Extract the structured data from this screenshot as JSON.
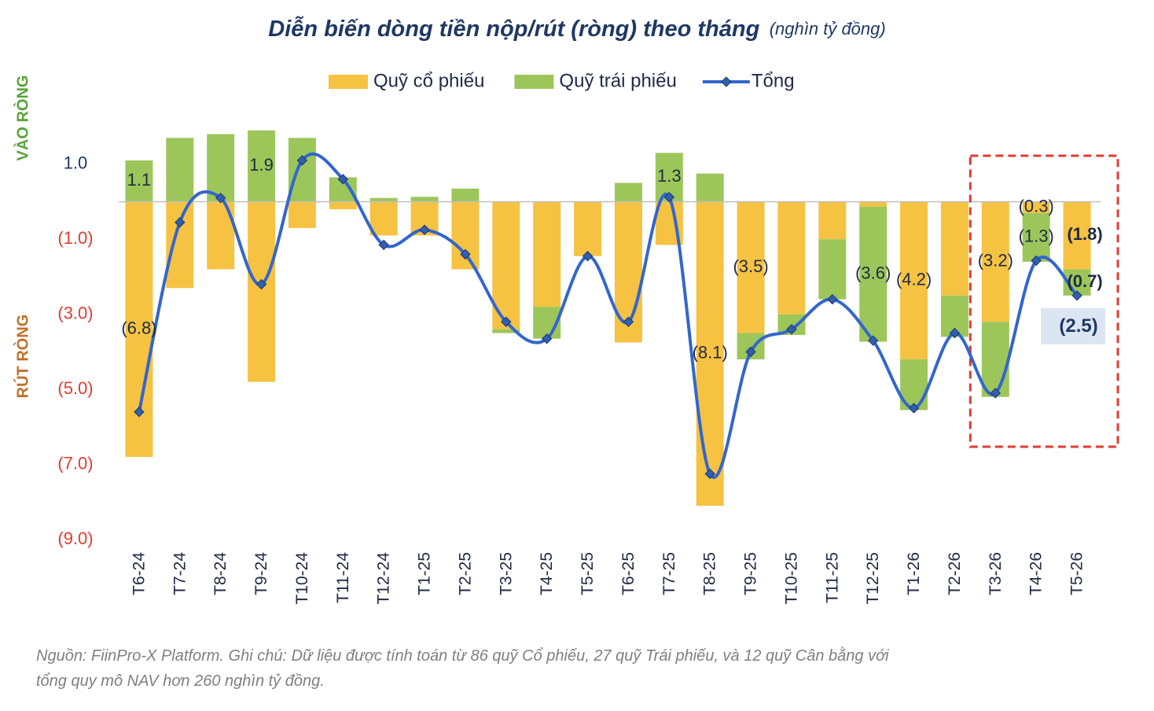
{
  "chart_data": {
    "type": "bar",
    "title": "Diễn biến dòng tiền nộp/rút (ròng) theo tháng",
    "subtitle": "(nghìn tỷ đồng)",
    "y_label_top": "VÀO RÒNG",
    "y_label_bottom": "RÚT RÒNG",
    "categories": [
      "T6-24",
      "T7-24",
      "T8-24",
      "T9-24",
      "T10-24",
      "T11-24",
      "T12-24",
      "T1-25",
      "T2-25",
      "T3-25",
      "T4-25",
      "T5-25",
      "T6-25",
      "T7-25",
      "T8-25",
      "T9-25",
      "T10-25",
      "T11-25",
      "T12-25",
      "T1-26",
      "T2-26",
      "T3-26",
      "T4-26",
      "T5-26"
    ],
    "series": [
      {
        "name": "Quỹ cổ phiếu",
        "type": "bar",
        "color": "#f5c242",
        "values": [
          -6.8,
          -2.3,
          -1.8,
          -4.8,
          -0.7,
          -0.2,
          -0.9,
          -0.9,
          -1.8,
          -3.4,
          -2.8,
          -1.45,
          -3.75,
          -1.15,
          -8.1,
          -3.5,
          -3.0,
          -1.0,
          -0.13,
          -4.2,
          -2.5,
          -3.2,
          -0.3,
          -1.8
        ],
        "value_labels": [
          "(6.8)",
          null,
          null,
          null,
          null,
          null,
          null,
          null,
          null,
          null,
          null,
          null,
          null,
          null,
          "(8.1)",
          "(3.5)",
          null,
          null,
          null,
          "(4.2)",
          null,
          "(3.2)",
          "(0.3)",
          "(1.8)"
        ]
      },
      {
        "name": "Quỹ trái phiếu",
        "type": "bar",
        "color": "#9dc65a",
        "values": [
          1.1,
          1.7,
          1.8,
          1.9,
          1.7,
          0.65,
          0.1,
          0.13,
          0.35,
          -0.1,
          -0.85,
          0.0,
          0.5,
          1.3,
          0.75,
          -0.7,
          -0.55,
          -1.6,
          -3.6,
          -1.35,
          -1.1,
          -2.0,
          -1.3,
          -0.7
        ],
        "value_labels": [
          "1.1",
          null,
          null,
          "1.9",
          null,
          null,
          null,
          null,
          null,
          null,
          null,
          null,
          null,
          "1.3",
          null,
          null,
          null,
          null,
          "(3.6)",
          null,
          null,
          null,
          "(1.3)",
          "(0.7)"
        ]
      },
      {
        "name": "Tổng",
        "type": "line",
        "color": "#3366cc",
        "marker_color": "#2f5fb3",
        "values": [
          -5.6,
          -0.55,
          0.1,
          -2.2,
          1.1,
          0.6,
          -1.15,
          -0.75,
          -1.4,
          -3.2,
          -3.65,
          -1.45,
          -3.2,
          0.12,
          -7.25,
          -4.0,
          -3.4,
          -2.6,
          -3.7,
          -5.5,
          -3.5,
          -5.1,
          -1.57,
          -2.5
        ],
        "value_labels": [
          null,
          null,
          null,
          null,
          null,
          null,
          null,
          null,
          null,
          null,
          null,
          null,
          null,
          null,
          null,
          null,
          null,
          null,
          null,
          null,
          null,
          null,
          null,
          "(2.5)"
        ]
      }
    ],
    "ylim": [
      -9,
      2
    ],
    "yticks": [
      {
        "value": 1,
        "label": "1.0"
      },
      {
        "value": -1,
        "label": "(1.0)"
      },
      {
        "value": -3,
        "label": "(3.0)"
      },
      {
        "value": -5,
        "label": "(5.0)"
      },
      {
        "value": -7,
        "label": "(7.0)"
      },
      {
        "value": -9,
        "label": "(9.0)"
      }
    ],
    "legend": "top",
    "note": [
      "Nguồn: FiinPro-X Platform. Ghi chú: Dữ liệu được tính toán từ 86 quỹ Cổ phiếu, 27 quỹ Trái phiếu, và 12 quỹ Cân bằng với",
      "tổng quy mô NAV hơn 260 nghìn tỷ đồng."
    ]
  }
}
